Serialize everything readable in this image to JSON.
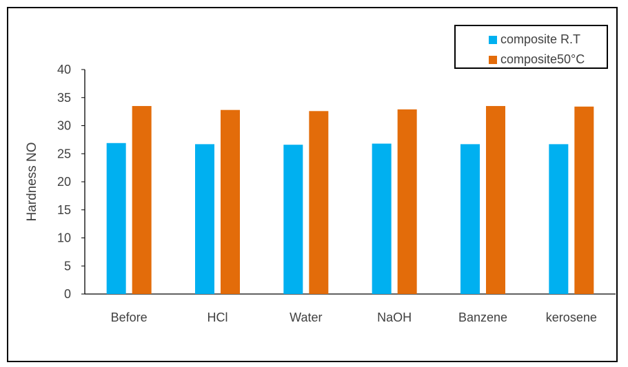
{
  "chart_data": {
    "type": "bar",
    "categories": [
      "Before",
      "HCl",
      "Water",
      "NaOH",
      "Banzene",
      "kerosene"
    ],
    "series": [
      {
        "name": "composite R.T",
        "color": "#00B0F0",
        "values": [
          26.9,
          26.7,
          26.6,
          26.8,
          26.7,
          26.7
        ]
      },
      {
        "name": "composite50°C",
        "color": "#E36C0A",
        "values": [
          33.5,
          32.8,
          32.6,
          32.9,
          33.5,
          33.4
        ]
      }
    ],
    "ylabel": "Hardness NO",
    "xlabel": "",
    "ylim": [
      0,
      40
    ],
    "yticks": [
      0,
      5,
      10,
      15,
      20,
      25,
      30,
      35,
      40
    ],
    "grid": false,
    "legend_position": "top-right"
  }
}
